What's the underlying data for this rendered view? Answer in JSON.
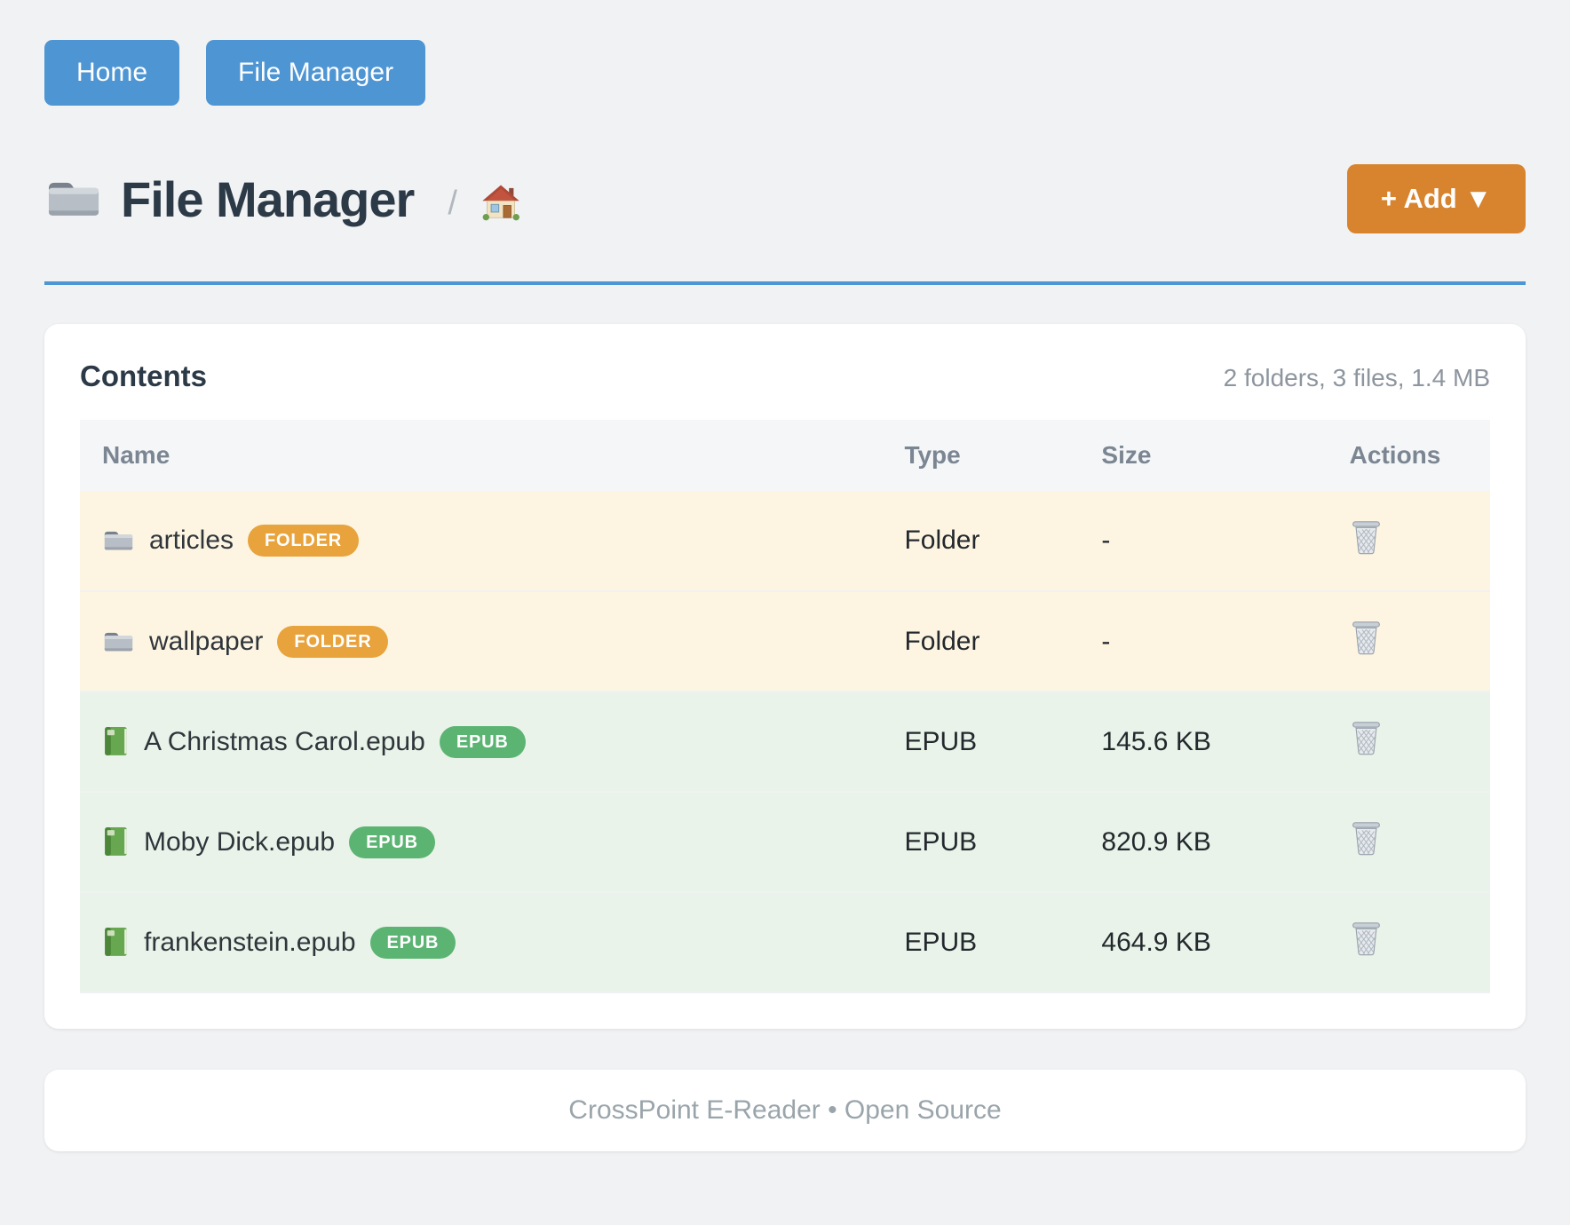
{
  "nav": {
    "buttons": [
      {
        "label": "Home"
      },
      {
        "label": "File Manager"
      }
    ]
  },
  "header": {
    "title": "File Manager",
    "breadcrumb_separator": "/",
    "breadcrumb_home_icon": "house-icon",
    "title_icon": "folder-icon",
    "add_button_label": "+ Add ▼"
  },
  "contents": {
    "title": "Contents",
    "summary": "2 folders, 3 files, 1.4 MB",
    "columns": [
      "Name",
      "Type",
      "Size",
      "Actions"
    ],
    "action_icon": "trash-icon",
    "rows": [
      {
        "name": "articles",
        "badge": "FOLDER",
        "type": "Folder",
        "size": "-",
        "kind": "folder",
        "icon": "folder-icon"
      },
      {
        "name": "wallpaper",
        "badge": "FOLDER",
        "type": "Folder",
        "size": "-",
        "kind": "folder",
        "icon": "folder-icon"
      },
      {
        "name": "A Christmas Carol.epub",
        "badge": "EPUB",
        "type": "EPUB",
        "size": "145.6 KB",
        "kind": "epub",
        "icon": "book-icon"
      },
      {
        "name": "Moby Dick.epub",
        "badge": "EPUB",
        "type": "EPUB",
        "size": "820.9 KB",
        "kind": "epub",
        "icon": "book-icon"
      },
      {
        "name": "frankenstein.epub",
        "badge": "EPUB",
        "type": "EPUB",
        "size": "464.9 KB",
        "kind": "epub",
        "icon": "book-icon"
      }
    ]
  },
  "footer": {
    "text": "CrossPoint E-Reader • Open Source"
  },
  "colors": {
    "blue": "#4e95d4",
    "ink": "#2c3a47",
    "orange": "#d8842f",
    "badge-folder": "#e8a33c",
    "badge-epub": "#5cb473",
    "row-folder-bg": "#fdf5e2",
    "row-epub-bg": "#e9f3e9",
    "page-bg": "#f1f2f4"
  }
}
